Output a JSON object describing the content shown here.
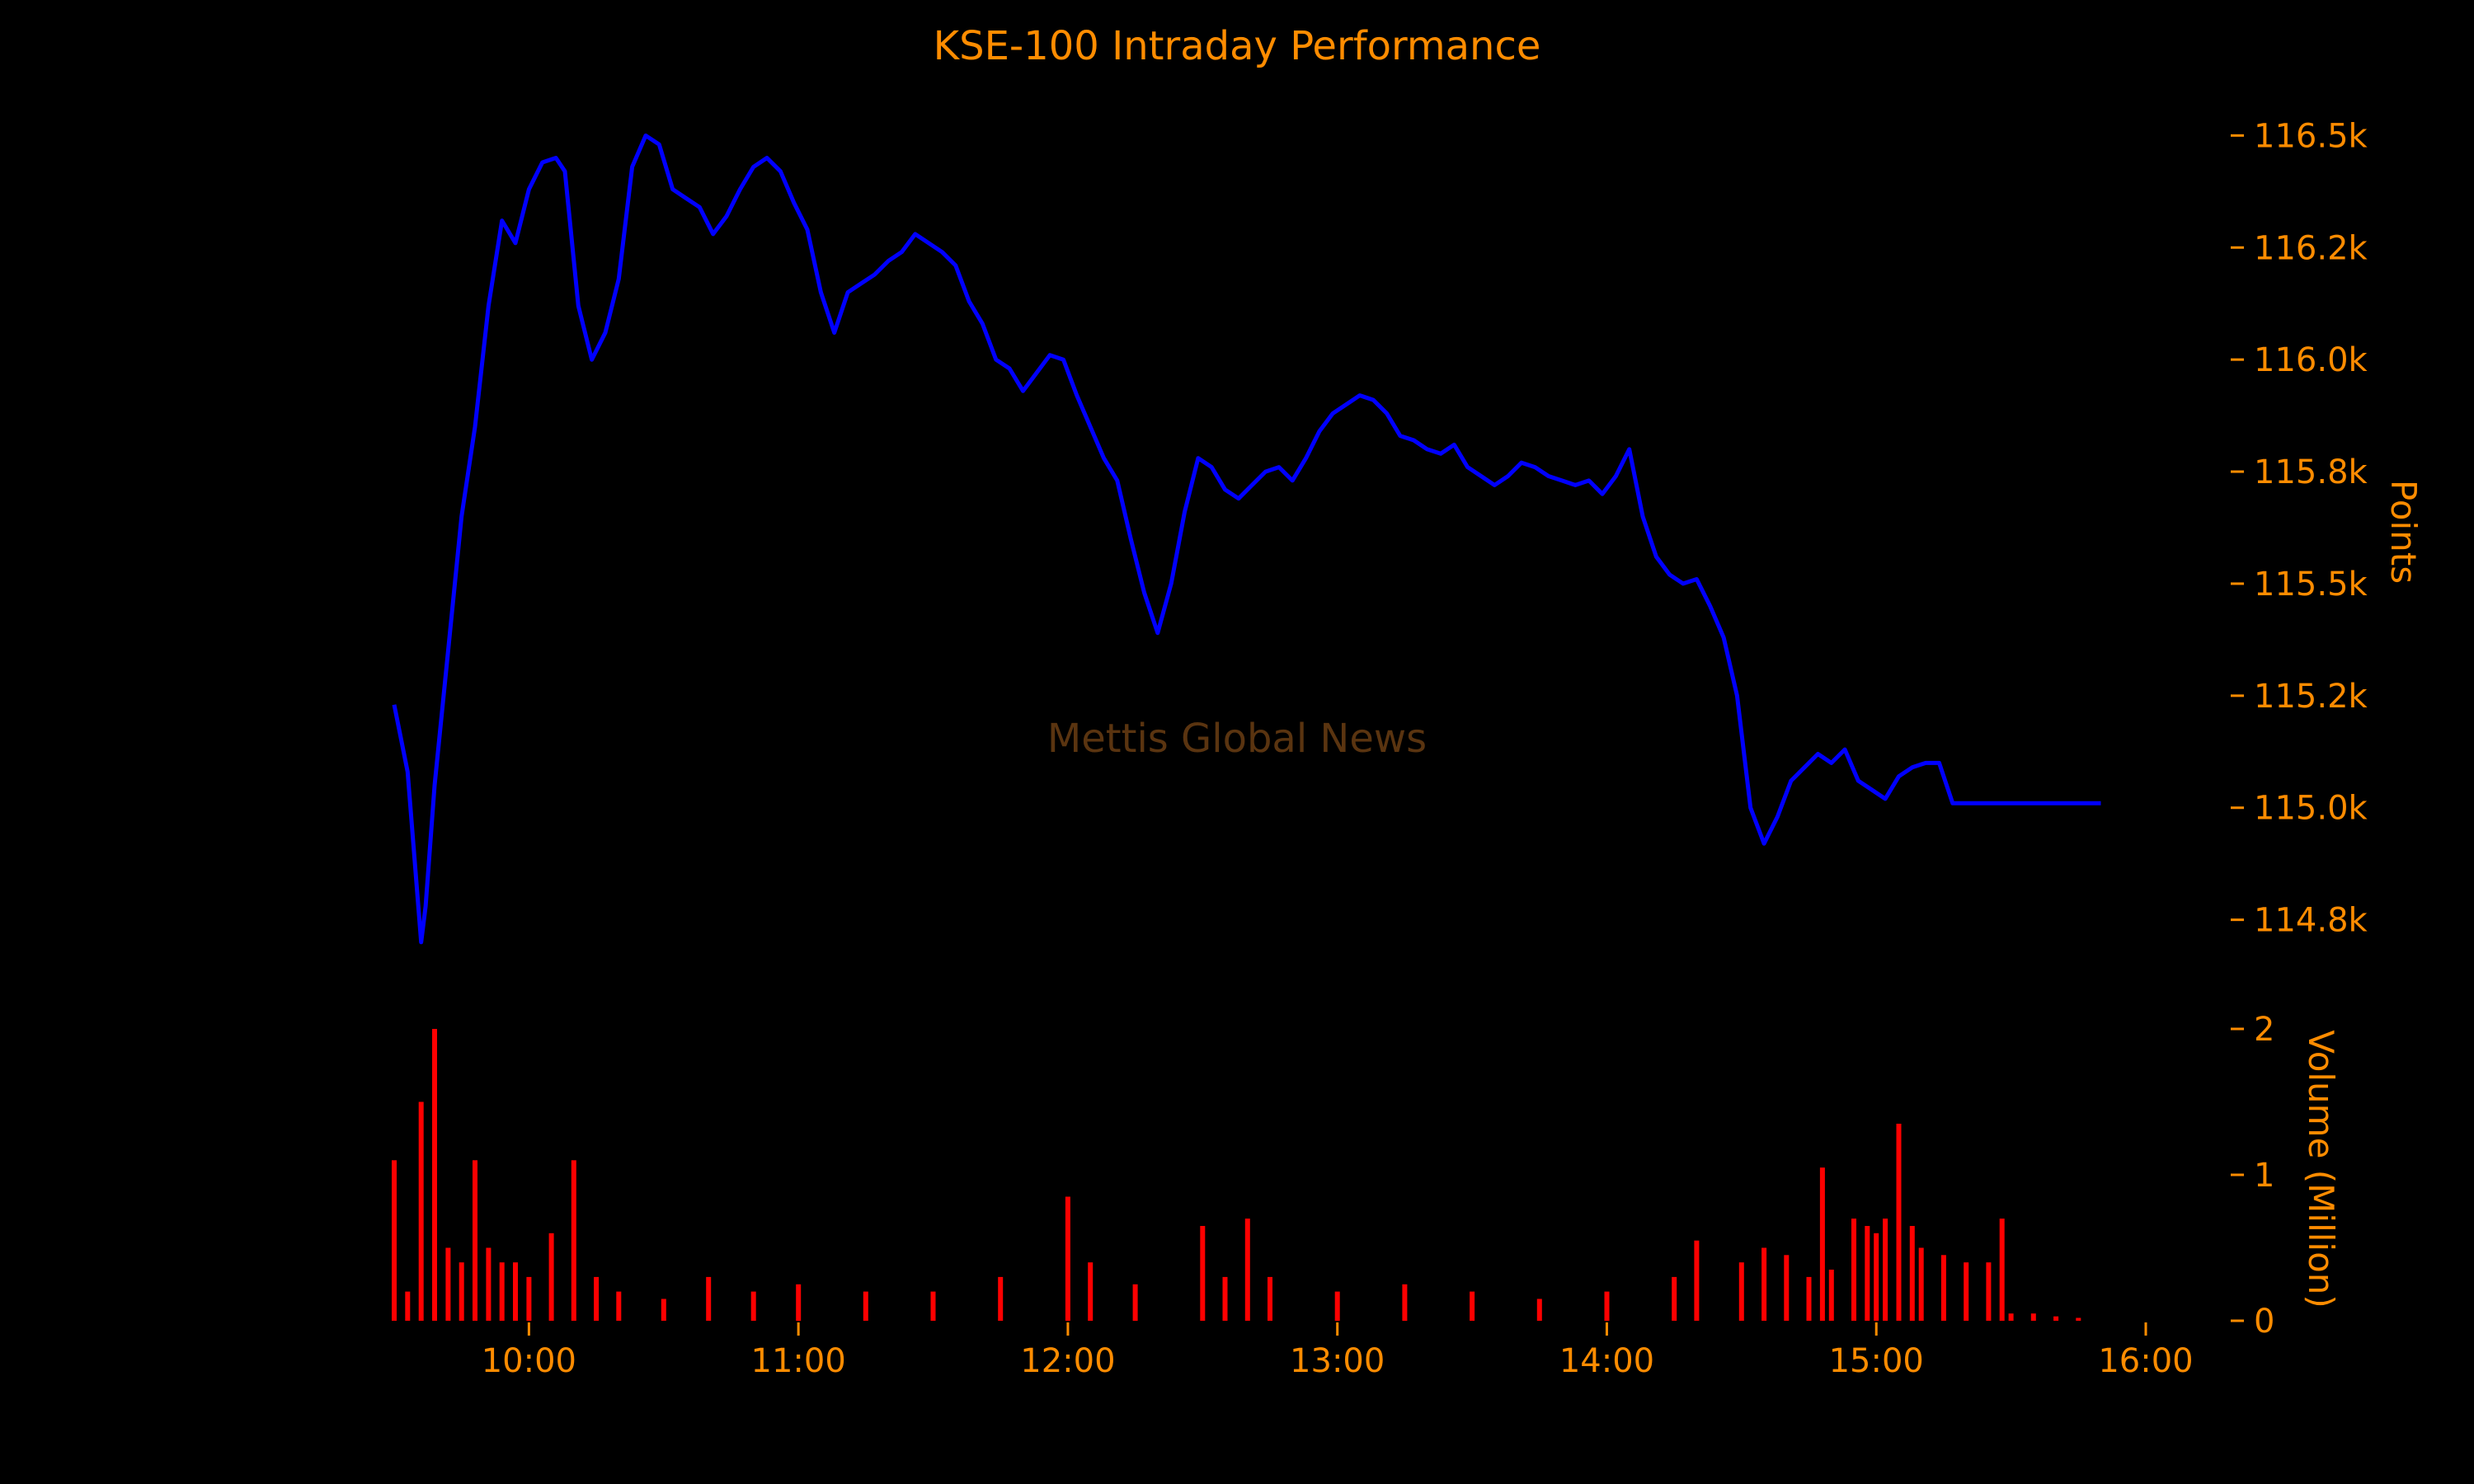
{
  "colors": {
    "background": "#000000",
    "text": "#ff8c00",
    "price_line": "#0000ff",
    "volume_bars": "#ff0000",
    "watermark": "#5a3410"
  },
  "chart_data": [
    {
      "type": "line",
      "title": "KSE-100 Intraday Performance",
      "ylabel": "Points",
      "xlabel": "",
      "ylim": [
        114650,
        116600
      ],
      "xlim": [
        "09:30",
        "16:00"
      ],
      "y_axis_side": "right",
      "grid": false,
      "yticks": [
        114750,
        115000,
        115250,
        115500,
        115750,
        116000,
        116250,
        116500
      ],
      "ytick_labels": [
        "114.8k",
        "115.0k",
        "115.2k",
        "115.5k",
        "115.8k",
        "116.0k",
        "116.2k",
        "116.5k"
      ],
      "watermark": "Mettis Global News",
      "series": [
        {
          "x": [
            "09:30",
            "09:33",
            "09:36",
            "09:37",
            "09:39",
            "09:42",
            "09:45",
            "09:48",
            "09:51",
            "09:54",
            "09:57",
            "10:00",
            "10:03",
            "10:06",
            "10:08",
            "10:11",
            "10:14",
            "10:17",
            "10:20",
            "10:23",
            "10:26",
            "10:29",
            "10:32",
            "10:35",
            "10:38",
            "10:41",
            "10:44",
            "10:47",
            "10:50",
            "10:53",
            "10:56",
            "10:59",
            "11:02",
            "11:05",
            "11:08",
            "11:11",
            "11:14",
            "11:17",
            "11:20",
            "11:23",
            "11:26",
            "11:29",
            "11:32",
            "11:35",
            "11:38",
            "11:41",
            "11:44",
            "11:47",
            "11:50",
            "11:53",
            "11:56",
            "11:59",
            "12:02",
            "12:05",
            "12:08",
            "12:11",
            "12:14",
            "12:17",
            "12:20",
            "12:23",
            "12:26",
            "12:29",
            "12:32",
            "12:35",
            "12:38",
            "12:41",
            "12:44",
            "12:47",
            "12:50",
            "12:53",
            "12:56",
            "12:59",
            "13:02",
            "13:05",
            "13:08",
            "13:11",
            "13:14",
            "13:17",
            "13:20",
            "13:23",
            "13:26",
            "13:29",
            "13:32",
            "13:35",
            "13:38",
            "13:41",
            "13:44",
            "13:47",
            "13:50",
            "13:53",
            "13:56",
            "13:59",
            "14:02",
            "14:05",
            "14:08",
            "14:11",
            "14:14",
            "14:17",
            "14:20",
            "14:23",
            "14:26",
            "14:29",
            "14:32",
            "14:35",
            "14:38",
            "14:41",
            "14:44",
            "14:47",
            "14:50",
            "14:53",
            "14:56",
            "14:59",
            "15:02",
            "15:05",
            "15:08",
            "15:11",
            "15:14",
            "15:17",
            "15:20",
            "15:23",
            "15:26",
            "15:29",
            "15:30",
            "15:35",
            "15:40",
            "15:45",
            "15:50"
          ],
          "values": [
            115230,
            115080,
            114700,
            114780,
            115050,
            115350,
            115650,
            115850,
            116120,
            116310,
            116260,
            116380,
            116440,
            116450,
            116420,
            116120,
            116000,
            116060,
            116180,
            116430,
            116500,
            116480,
            116380,
            116360,
            116340,
            116280,
            116320,
            116380,
            116430,
            116450,
            116420,
            116350,
            116290,
            116150,
            116060,
            116150,
            116170,
            116190,
            116220,
            116240,
            116280,
            116260,
            116240,
            116210,
            116130,
            116080,
            116000,
            115980,
            115930,
            115970,
            116010,
            116000,
            115920,
            115850,
            115780,
            115730,
            115600,
            115480,
            115390,
            115500,
            115660,
            115780,
            115760,
            115710,
            115690,
            115720,
            115750,
            115760,
            115730,
            115780,
            115840,
            115880,
            115900,
            115920,
            115910,
            115880,
            115830,
            115820,
            115800,
            115790,
            115810,
            115760,
            115740,
            115720,
            115740,
            115770,
            115760,
            115740,
            115730,
            115720,
            115730,
            115700,
            115740,
            115800,
            115650,
            115560,
            115520,
            115500,
            115510,
            115450,
            115380,
            115250,
            115000,
            114920,
            114980,
            115060,
            115090,
            115120,
            115100,
            115130,
            115060,
            115040,
            115020,
            115070,
            115090,
            115100,
            115100,
            115010,
            115010,
            115010,
            115010,
            115010,
            115010,
            115010,
            115010,
            115010,
            115010
          ]
        }
      ]
    },
    {
      "type": "bar",
      "ylabel": "Volume (Million)",
      "ylim": [
        0,
        2
      ],
      "yticks": [
        0,
        1,
        2
      ],
      "ytick_labels": [
        "0",
        "1",
        "2"
      ],
      "xticks": [
        "10:00",
        "11:00",
        "12:00",
        "13:00",
        "14:00",
        "15:00",
        "16:00"
      ],
      "series": [
        {
          "name": "",
          "x": [
            "09:30",
            "09:33",
            "09:36",
            "09:39",
            "09:42",
            "09:45",
            "09:48",
            "09:51",
            "09:54",
            "09:57",
            "10:00",
            "10:05",
            "10:10",
            "10:15",
            "10:20",
            "10:30",
            "10:40",
            "10:50",
            "11:00",
            "11:15",
            "11:30",
            "11:45",
            "12:00",
            "12:05",
            "12:15",
            "12:30",
            "12:35",
            "12:40",
            "12:45",
            "13:00",
            "13:15",
            "13:30",
            "13:45",
            "14:00",
            "14:15",
            "14:20",
            "14:30",
            "14:35",
            "14:40",
            "14:45",
            "14:48",
            "14:50",
            "14:55",
            "14:58",
            "15:00",
            "15:02",
            "15:05",
            "15:08",
            "15:10",
            "15:15",
            "15:20",
            "15:25",
            "15:28",
            "15:30",
            "15:35",
            "15:40",
            "15:45"
          ],
          "values": [
            1.1,
            0.2,
            1.5,
            2.0,
            0.5,
            0.4,
            1.1,
            0.5,
            0.4,
            0.4,
            0.3,
            0.6,
            1.1,
            0.3,
            0.2,
            0.15,
            0.3,
            0.2,
            0.25,
            0.2,
            0.2,
            0.3,
            0.85,
            0.4,
            0.25,
            0.65,
            0.3,
            0.7,
            0.3,
            0.2,
            0.25,
            0.2,
            0.15,
            0.2,
            0.3,
            0.55,
            0.4,
            0.5,
            0.45,
            0.3,
            1.05,
            0.35,
            0.7,
            0.65,
            0.6,
            0.7,
            1.35,
            0.65,
            0.5,
            0.45,
            0.4,
            0.4,
            0.7,
            0.05,
            0.05,
            0.03,
            0.02
          ]
        }
      ]
    }
  ]
}
